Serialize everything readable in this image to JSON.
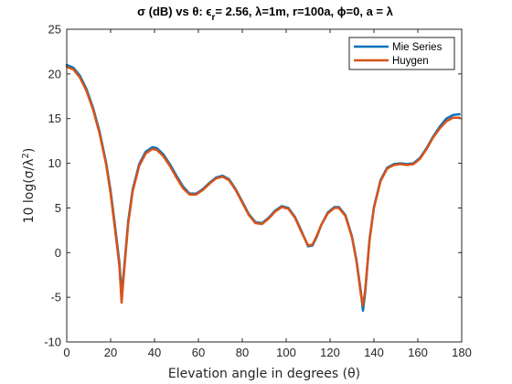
{
  "chart_data": {
    "type": "line",
    "title": "σ (dB) vs θ: ϵr= 2.56, λ=1m, r=100a, ϕ=0, a = λ",
    "title_parts": {
      "a": "σ (dB) vs θ: ϵ",
      "sub": "r",
      "b": "= 2.56, λ=1m, r=100a, ϕ=0, a = λ"
    },
    "xlabel": "Elevation angle in degrees (θ)",
    "ylabel": "10 log(σ/λ²)",
    "ylabel_parts": {
      "a": "10 log(σ/λ",
      "sup": "2",
      "b": ")"
    },
    "xlim": [
      0,
      180
    ],
    "ylim": [
      -10,
      25
    ],
    "xticks": [
      0,
      20,
      40,
      60,
      80,
      100,
      120,
      140,
      160,
      180
    ],
    "yticks": [
      -10,
      -5,
      0,
      5,
      10,
      15,
      20,
      25
    ],
    "grid": false,
    "legend_position": "top-right",
    "series": [
      {
        "name": "Mie Series",
        "color": "#0072BD",
        "x": [
          0,
          3,
          6,
          9,
          12,
          15,
          18,
          20,
          22,
          24,
          25,
          26,
          28,
          30,
          33,
          36,
          39,
          41,
          44,
          47,
          50,
          53,
          56,
          59,
          62,
          65,
          68,
          71,
          74,
          77,
          80,
          83,
          86,
          89,
          92,
          95,
          98,
          101,
          104,
          107,
          110,
          112,
          114,
          116,
          119,
          122,
          124,
          127,
          130,
          132,
          134,
          135,
          136,
          138,
          140,
          143,
          146,
          149,
          152,
          155,
          158,
          161,
          164,
          167,
          170,
          173,
          176,
          179
        ],
        "y": [
          21.0,
          20.7,
          19.8,
          18.3,
          16.2,
          13.5,
          10.0,
          6.9,
          3.0,
          -1.1,
          -4.5,
          -2.2,
          3.5,
          7.0,
          9.9,
          11.3,
          11.8,
          11.7,
          11.0,
          9.9,
          8.6,
          7.4,
          6.6,
          6.6,
          7.1,
          7.8,
          8.4,
          8.6,
          8.2,
          7.1,
          5.7,
          4.3,
          3.4,
          3.3,
          3.9,
          4.7,
          5.2,
          5.0,
          4.0,
          2.4,
          0.7,
          0.8,
          1.8,
          3.1,
          4.5,
          5.1,
          5.1,
          4.2,
          1.8,
          -0.8,
          -4.3,
          -6.5,
          -4.5,
          1.5,
          5.1,
          8.1,
          9.5,
          9.9,
          10.0,
          9.9,
          10.0,
          10.6,
          11.7,
          13.0,
          14.1,
          15.0,
          15.4,
          15.5
        ]
      },
      {
        "name": "Huygen",
        "color": "#D95319",
        "x": [
          0,
          3,
          6,
          9,
          12,
          15,
          18,
          20,
          22,
          24,
          25,
          26,
          28,
          30,
          33,
          36,
          39,
          41,
          44,
          47,
          50,
          53,
          56,
          59,
          62,
          65,
          68,
          71,
          74,
          77,
          80,
          83,
          86,
          89,
          92,
          95,
          98,
          101,
          104,
          107,
          110,
          112,
          114,
          116,
          119,
          122,
          124,
          127,
          130,
          132,
          134,
          135,
          136,
          138,
          140,
          143,
          146,
          149,
          152,
          155,
          158,
          161,
          164,
          167,
          170,
          173,
          176,
          179
        ],
        "y": [
          20.8,
          20.5,
          19.6,
          18.1,
          16.0,
          13.3,
          9.8,
          6.6,
          2.6,
          -1.5,
          -5.6,
          -2.5,
          3.2,
          6.8,
          9.7,
          11.1,
          11.6,
          11.5,
          10.8,
          9.7,
          8.4,
          7.2,
          6.5,
          6.5,
          7.0,
          7.7,
          8.3,
          8.5,
          8.1,
          7.0,
          5.6,
          4.2,
          3.3,
          3.2,
          3.8,
          4.6,
          5.1,
          4.9,
          3.9,
          2.3,
          0.8,
          0.9,
          1.9,
          3.1,
          4.4,
          5.0,
          5.0,
          4.1,
          1.7,
          -0.9,
          -4.6,
          -5.9,
          -4.2,
          1.4,
          5.0,
          8.0,
          9.4,
          9.8,
          9.9,
          9.8,
          9.9,
          10.5,
          11.6,
          12.9,
          13.9,
          14.7,
          15.1,
          15.1
        ]
      }
    ]
  }
}
